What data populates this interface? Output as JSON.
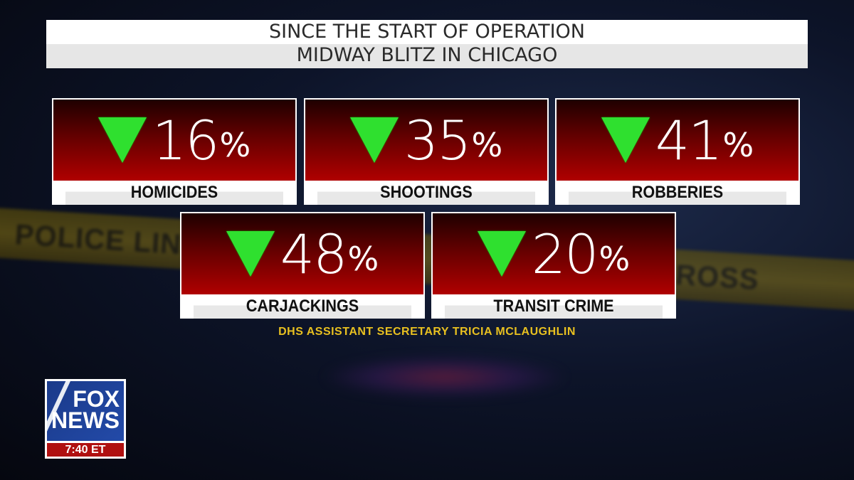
{
  "background": {
    "tape_text_left": "POLICE LINE DO N",
    "tape_text_right": "ROSS"
  },
  "title": {
    "line1": "SINCE THE START OF OPERATION",
    "line2": "MIDWAY BLITZ IN CHICAGO"
  },
  "stats": [
    {
      "value": "16",
      "unit": "%",
      "direction": "down",
      "label": "HOMICIDES"
    },
    {
      "value": "35",
      "unit": "%",
      "direction": "down",
      "label": "SHOOTINGS"
    },
    {
      "value": "41",
      "unit": "%",
      "direction": "down",
      "label": "ROBBERIES"
    },
    {
      "value": "48",
      "unit": "%",
      "direction": "down",
      "label": "CARJACKINGS"
    },
    {
      "value": "20",
      "unit": "%",
      "direction": "down",
      "label": "TRANSIT CRIME"
    }
  ],
  "source": "DHS ASSISTANT SECRETARY TRICIA MCLAUGHLIN",
  "logo": {
    "line1": "FOX",
    "line2": "NEWS",
    "time": "7:40 ET"
  },
  "colors": {
    "down_arrow": "#2fe02f",
    "card_red": "#b00000",
    "source_text": "#e8c020"
  }
}
